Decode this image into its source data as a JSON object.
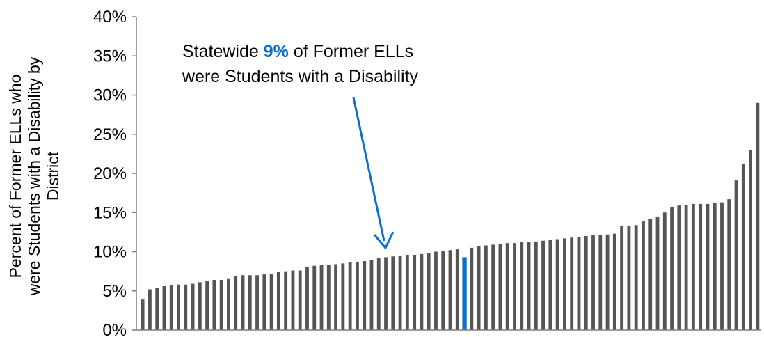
{
  "chart_data": {
    "type": "bar",
    "ylabel_lines": [
      "Percent of Former ELLs who",
      "were Students with a Disability by",
      "District"
    ],
    "ylim": [
      0,
      0.4
    ],
    "yticks": [
      "0%",
      "5%",
      "10%",
      "15%",
      "20%",
      "25%",
      "30%",
      "35%",
      "40%"
    ],
    "grid": false,
    "legend": "none",
    "colors": {
      "bar": "#555555",
      "highlight": "#0f6fc6"
    },
    "highlight_index": 45,
    "values": [
      0.039,
      0.052,
      0.054,
      0.056,
      0.057,
      0.058,
      0.058,
      0.059,
      0.061,
      0.063,
      0.064,
      0.064,
      0.066,
      0.069,
      0.07,
      0.07,
      0.07,
      0.071,
      0.072,
      0.074,
      0.075,
      0.076,
      0.076,
      0.08,
      0.082,
      0.083,
      0.083,
      0.084,
      0.085,
      0.087,
      0.087,
      0.088,
      0.089,
      0.092,
      0.093,
      0.094,
      0.095,
      0.096,
      0.096,
      0.097,
      0.098,
      0.1,
      0.101,
      0.102,
      0.103,
      0.093,
      0.105,
      0.107,
      0.108,
      0.109,
      0.11,
      0.111,
      0.111,
      0.112,
      0.112,
      0.113,
      0.114,
      0.115,
      0.116,
      0.117,
      0.118,
      0.119,
      0.12,
      0.121,
      0.121,
      0.122,
      0.123,
      0.133,
      0.133,
      0.134,
      0.139,
      0.142,
      0.145,
      0.15,
      0.157,
      0.159,
      0.16,
      0.161,
      0.161,
      0.161,
      0.162,
      0.163,
      0.167,
      0.191,
      0.212,
      0.23,
      0.29
    ],
    "annotation": {
      "line1_prefix": "Statewide ",
      "line1_highlight": "9%",
      "line1_suffix": " of Former ELLs",
      "line2": "were Students with a Disability"
    }
  }
}
